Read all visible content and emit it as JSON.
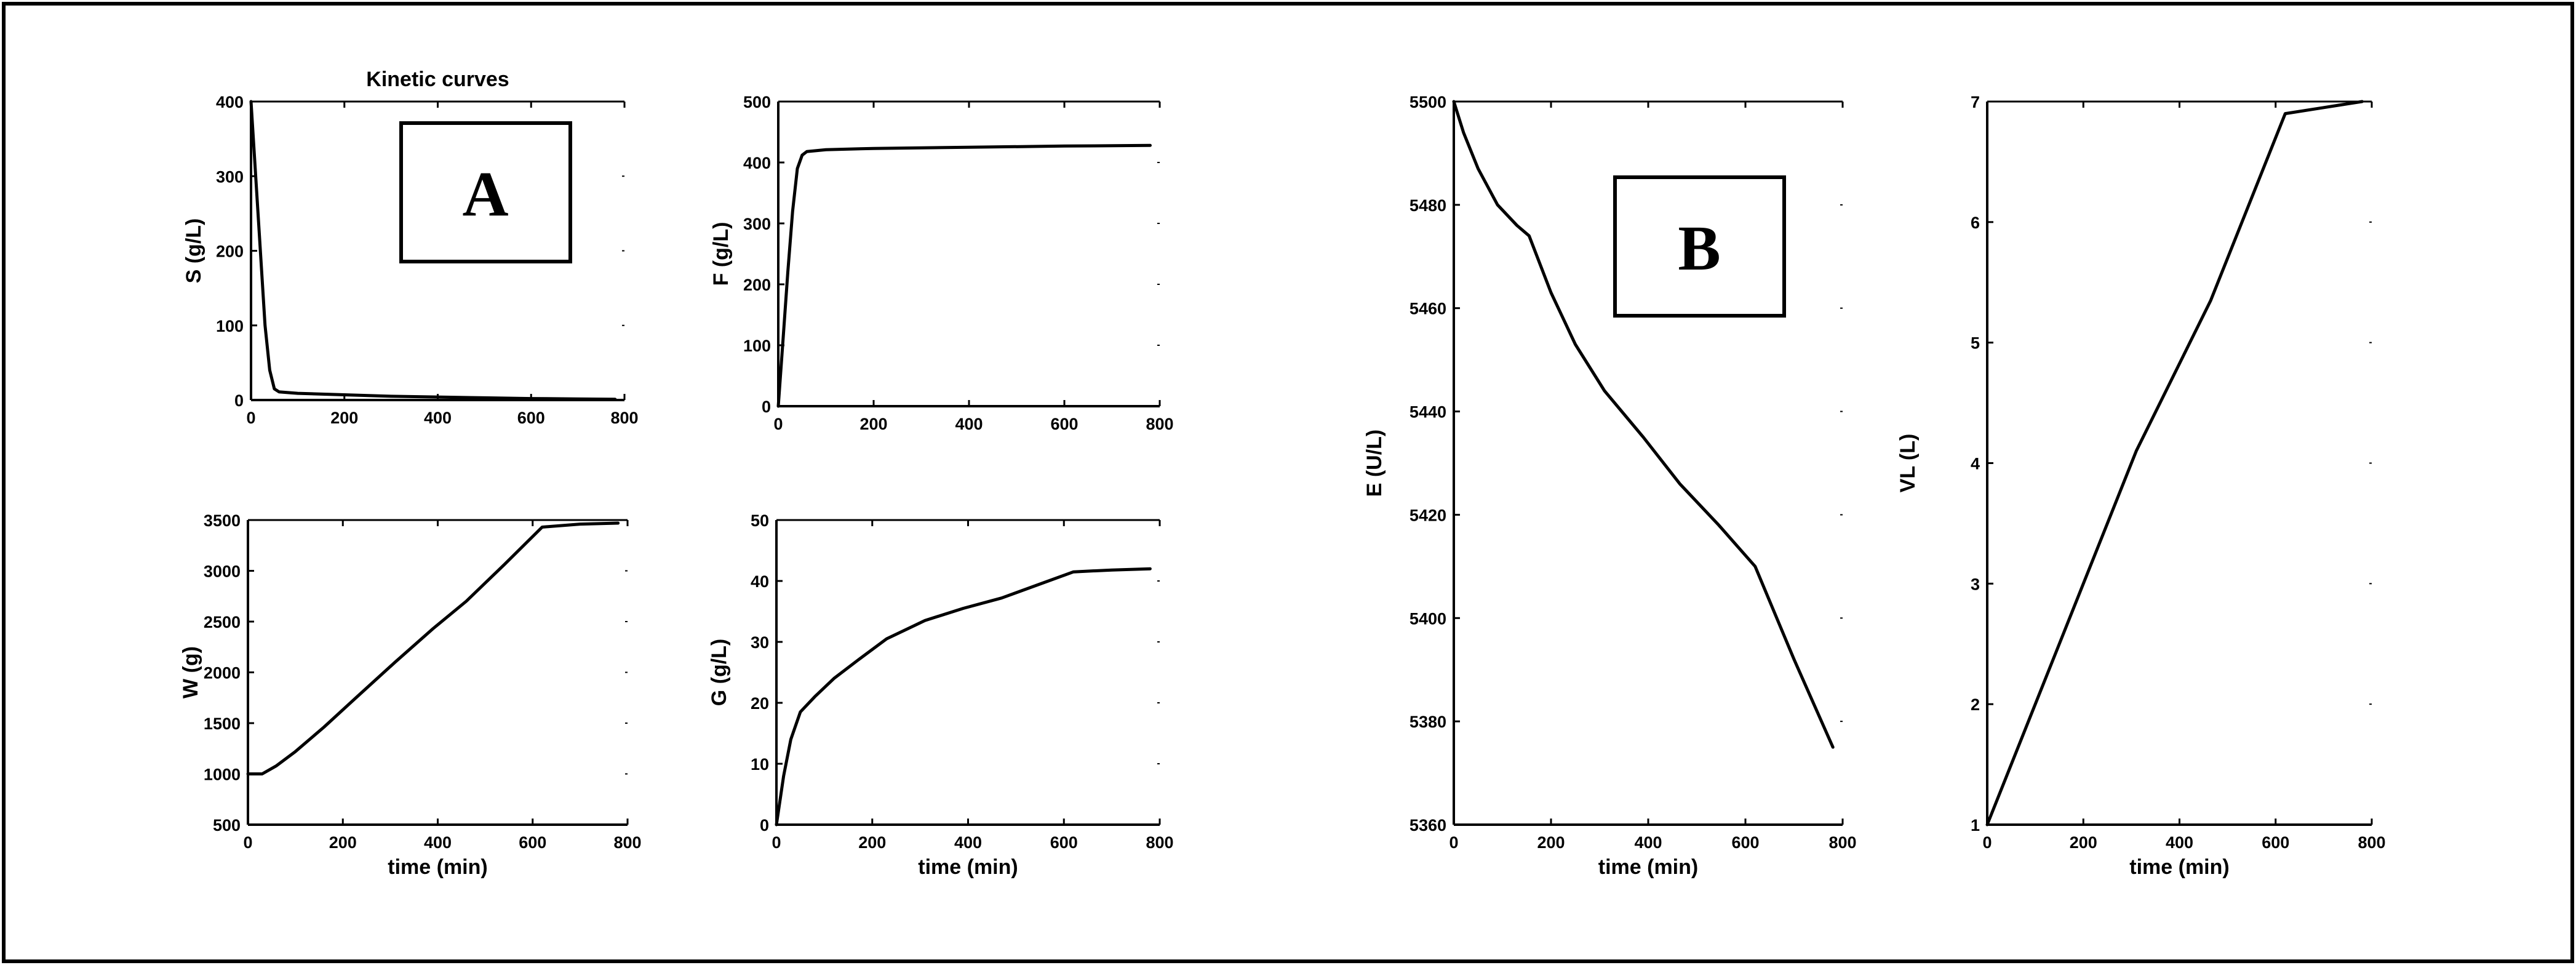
{
  "panel_labels": [
    "A",
    "B"
  ],
  "chart_data": [
    {
      "type": "line",
      "title": "Kinetic curves",
      "xlabel": "",
      "ylabel": "S (g/L)",
      "xlim": [
        0,
        800
      ],
      "ylim": [
        0,
        400
      ],
      "xticks": [
        0,
        200,
        400,
        600,
        800
      ],
      "yticks": [
        0,
        100,
        200,
        300,
        400
      ],
      "grid": false,
      "series": [
        {
          "x": [
            0,
            10,
            20,
            30,
            40,
            50,
            60,
            100,
            200,
            300,
            400,
            500,
            600,
            700,
            780
          ],
          "y": [
            400,
            300,
            200,
            100,
            40,
            15,
            11,
            9,
            7,
            5,
            4,
            3,
            2,
            1.5,
            1
          ]
        }
      ]
    },
    {
      "type": "line",
      "title": "",
      "xlabel": "",
      "ylabel": "F (g/L)",
      "xlim": [
        0,
        800
      ],
      "ylim": [
        0,
        500
      ],
      "xticks": [
        0,
        200,
        400,
        600,
        800
      ],
      "yticks": [
        0,
        100,
        200,
        300,
        400,
        500
      ],
      "grid": false,
      "series": [
        {
          "x": [
            0,
            10,
            20,
            30,
            40,
            50,
            60,
            100,
            200,
            400,
            600,
            780
          ],
          "y": [
            0,
            110,
            220,
            320,
            390,
            412,
            418,
            421,
            423,
            425,
            427,
            428
          ]
        }
      ]
    },
    {
      "type": "line",
      "title": "",
      "xlabel": "time (min)",
      "ylabel": "W (g)",
      "xlim": [
        0,
        800
      ],
      "ylim": [
        500,
        3500
      ],
      "xticks": [
        0,
        200,
        400,
        600,
        800
      ],
      "yticks": [
        500,
        1000,
        1500,
        2000,
        2500,
        3000,
        3500
      ],
      "grid": false,
      "series": [
        {
          "x": [
            0,
            30,
            60,
            100,
            160,
            230,
            310,
            390,
            460,
            540,
            620,
            700,
            780
          ],
          "y": [
            1000,
            1000,
            1080,
            1220,
            1460,
            1760,
            2100,
            2430,
            2700,
            3060,
            3430,
            3460,
            3470
          ]
        }
      ]
    },
    {
      "type": "line",
      "title": "",
      "xlabel": "time (min)",
      "ylabel": "G (g/L)",
      "xlim": [
        0,
        800
      ],
      "ylim": [
        0,
        50
      ],
      "xticks": [
        0,
        200,
        400,
        600,
        800
      ],
      "yticks": [
        0,
        10,
        20,
        30,
        40,
        50
      ],
      "grid": false,
      "series": [
        {
          "x": [
            0,
            15,
            30,
            50,
            80,
            120,
            170,
            230,
            310,
            390,
            470,
            550,
            620,
            700,
            780
          ],
          "y": [
            0,
            8,
            14,
            18.5,
            21,
            24,
            27,
            30.5,
            33.5,
            35.5,
            37.2,
            39.5,
            41.5,
            41.8,
            42
          ]
        }
      ]
    },
    {
      "type": "line",
      "title": "",
      "xlabel": "time (min)",
      "ylabel": "E (U/L)",
      "xlim": [
        0,
        800
      ],
      "ylim": [
        5360,
        5500
      ],
      "xticks": [
        0,
        200,
        400,
        600,
        800
      ],
      "yticks": [
        5360,
        5380,
        5400,
        5420,
        5440,
        5460,
        5480,
        5500
      ],
      "grid": false,
      "series": [
        {
          "x": [
            0,
            20,
            50,
            90,
            130,
            155,
            200,
            250,
            310,
            390,
            465,
            545,
            620,
            700,
            780
          ],
          "y": [
            5500,
            5494,
            5487,
            5480,
            5476,
            5474,
            5463,
            5453,
            5444,
            5435,
            5426,
            5418,
            5410,
            5392,
            5375
          ]
        }
      ]
    },
    {
      "type": "line",
      "title": "",
      "xlabel": "time (min)",
      "ylabel": "VL (L)",
      "xlim": [
        0,
        800
      ],
      "ylim": [
        1,
        7
      ],
      "xticks": [
        0,
        200,
        400,
        600,
        800
      ],
      "yticks": [
        1,
        2,
        3,
        4,
        5,
        6,
        7
      ],
      "grid": false,
      "series": [
        {
          "x": [
            0,
            155,
            310,
            465,
            620,
            700,
            780
          ],
          "y": [
            1,
            2.55,
            4.1,
            5.35,
            6.9,
            6.95,
            7
          ]
        }
      ]
    }
  ]
}
